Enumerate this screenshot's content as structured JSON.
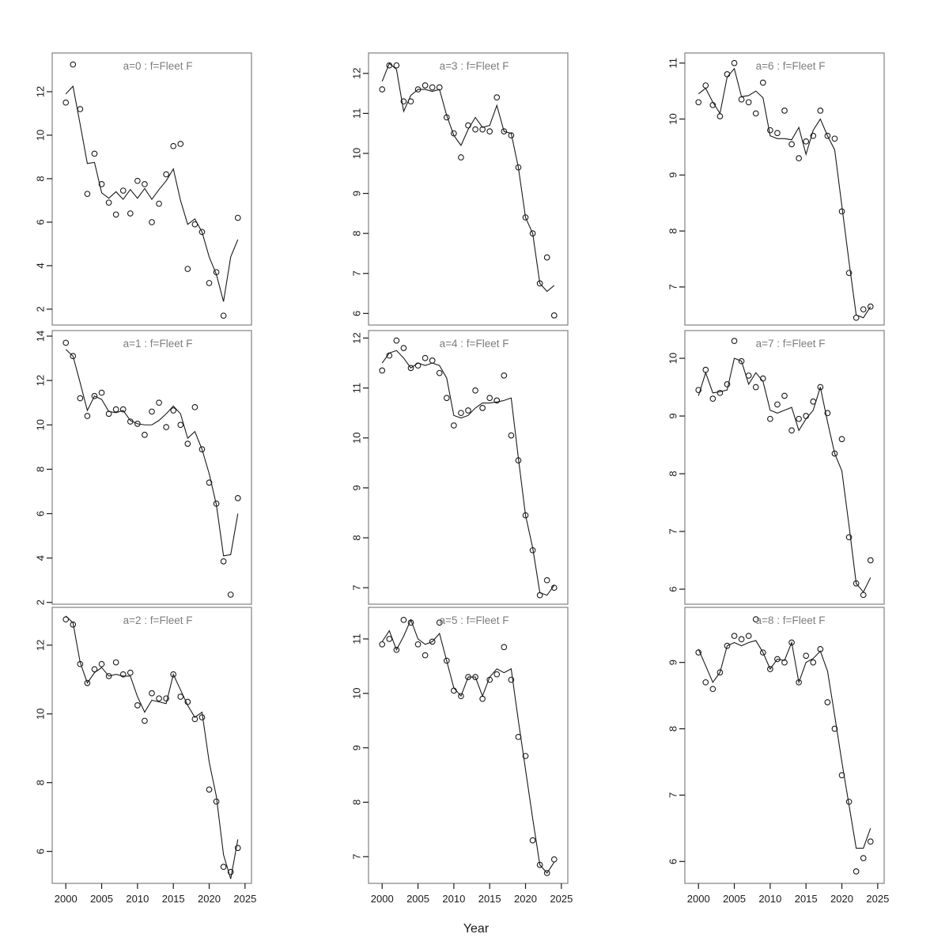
{
  "chart_data": {
    "type": "scatter",
    "title": "",
    "xlabel": "Year",
    "x": [
      2000,
      2001,
      2002,
      2003,
      2004,
      2005,
      2006,
      2007,
      2008,
      2009,
      2010,
      2011,
      2012,
      2013,
      2014,
      2015,
      2016,
      2017,
      2018,
      2019,
      2020,
      2021,
      2022,
      2023,
      2024
    ],
    "x_ticks": [
      2000,
      2005,
      2010,
      2015,
      2020,
      2025
    ],
    "xlim": [
      1998.1,
      2025.9
    ],
    "grid": false,
    "legend": "none",
    "marker": "open-circle",
    "colors": {
      "points": "#1a1a1a",
      "line": "#1a1a1a",
      "border": "#8a8a8a",
      "panel_label": "#7d7d7d",
      "tick_text": "#1a1a1a"
    },
    "layout_hint": {
      "rows": 3,
      "cols": 3,
      "order": "column-major",
      "x_axis_on_bottom_row_only": true
    },
    "panels": [
      {
        "label": "a=0  :  f=Fleet F",
        "ylim": [
          1.27,
          13.78
        ],
        "yticks": [
          2,
          4,
          6,
          8,
          10,
          12
        ],
        "series": [
          {
            "name": "observed",
            "values": [
              11.5,
              13.25,
              11.2,
              7.3,
              9.15,
              7.75,
              6.9,
              6.35,
              7.45,
              6.4,
              7.9,
              7.75,
              6.0,
              6.85,
              8.2,
              9.5,
              9.6,
              3.85,
              5.9,
              5.55,
              3.2,
              3.7,
              1.7,
              null,
              6.2
            ]
          },
          {
            "name": "fitted",
            "values": [
              11.9,
              12.25,
              10.5,
              8.7,
              8.75,
              7.35,
              7.1,
              7.4,
              7.05,
              7.5,
              7.1,
              7.55,
              7.05,
              7.5,
              7.9,
              8.45,
              7.0,
              5.9,
              6.15,
              5.55,
              4.4,
              3.6,
              2.35,
              4.4,
              5.2
            ]
          }
        ]
      },
      {
        "label": "a=1  :  f=Fleet F",
        "ylim": [
          1.92,
          14.25
        ],
        "yticks": [
          2,
          4,
          6,
          8,
          10,
          12,
          14
        ],
        "series": [
          {
            "name": "observed",
            "values": [
              13.7,
              13.1,
              11.2,
              10.4,
              11.3,
              11.45,
              10.5,
              10.7,
              10.7,
              10.15,
              10.05,
              9.55,
              10.6,
              11.0,
              9.9,
              10.65,
              10.0,
              9.15,
              10.8,
              8.9,
              7.4,
              6.45,
              3.85,
              2.35,
              6.7
            ]
          },
          {
            "name": "fitted",
            "values": [
              13.4,
              13.1,
              11.9,
              10.65,
              11.3,
              11.15,
              10.6,
              10.55,
              10.65,
              10.2,
              10.05,
              10.0,
              10.0,
              10.2,
              10.5,
              10.85,
              10.5,
              9.4,
              9.7,
              8.9,
              7.8,
              6.4,
              4.1,
              4.15,
              6.0
            ]
          }
        ]
      },
      {
        "label": "a=2  :  f=Fleet F",
        "ylim": [
          5.07,
          13.1
        ],
        "yticks": [
          6,
          8,
          10,
          12
        ],
        "series": [
          {
            "name": "observed",
            "values": [
              12.75,
              12.6,
              11.45,
              10.9,
              11.3,
              11.45,
              11.1,
              11.5,
              11.15,
              11.2,
              10.25,
              9.8,
              10.6,
              10.45,
              10.45,
              11.15,
              10.5,
              10.35,
              9.85,
              9.9,
              7.8,
              7.45,
              5.55,
              5.4,
              6.1
            ]
          },
          {
            "name": "fitted",
            "values": [
              12.85,
              12.65,
              11.5,
              10.9,
              11.2,
              11.35,
              11.1,
              11.15,
              11.1,
              11.1,
              10.5,
              10.05,
              10.4,
              10.35,
              10.3,
              11.15,
              10.7,
              10.25,
              9.9,
              10.05,
              8.6,
              7.6,
              5.9,
              5.2,
              6.35
            ]
          }
        ]
      },
      {
        "label": "a=3  :  f=Fleet F",
        "ylim": [
          5.71,
          12.51
        ],
        "yticks": [
          6,
          7,
          8,
          9,
          10,
          11,
          12
        ],
        "series": [
          {
            "name": "observed",
            "values": [
              11.6,
              12.2,
              12.2,
              11.3,
              11.3,
              11.6,
              11.7,
              11.65,
              11.65,
              10.9,
              10.5,
              9.9,
              10.7,
              10.6,
              10.6,
              10.55,
              11.4,
              10.55,
              10.45,
              9.65,
              8.4,
              8.0,
              6.75,
              7.4,
              5.95
            ]
          },
          {
            "name": "fitted",
            "values": [
              11.8,
              12.25,
              12.1,
              11.05,
              11.45,
              11.6,
              11.6,
              11.55,
              11.6,
              10.95,
              10.45,
              10.2,
              10.6,
              10.9,
              10.65,
              10.7,
              11.2,
              10.55,
              10.5,
              9.65,
              8.4,
              8.0,
              6.75,
              6.55,
              6.7
            ]
          }
        ]
      },
      {
        "label": "a=4  :  f=Fleet F",
        "ylim": [
          6.67,
          12.15
        ],
        "yticks": [
          7,
          8,
          9,
          10,
          11,
          12
        ],
        "series": [
          {
            "name": "observed",
            "values": [
              11.35,
              11.65,
              11.95,
              11.8,
              11.4,
              11.45,
              11.6,
              11.55,
              11.3,
              10.8,
              10.25,
              10.5,
              10.55,
              10.95,
              10.6,
              10.8,
              10.75,
              11.25,
              10.05,
              9.55,
              8.45,
              7.75,
              6.85,
              7.15,
              7.0
            ]
          },
          {
            "name": "fitted",
            "values": [
              11.5,
              11.7,
              11.75,
              11.6,
              11.4,
              11.5,
              11.45,
              11.5,
              11.45,
              11.2,
              10.45,
              10.4,
              10.45,
              10.6,
              10.7,
              10.7,
              10.72,
              10.75,
              10.8,
              9.6,
              8.45,
              7.8,
              6.9,
              6.85,
              7.05
            ]
          }
        ]
      },
      {
        "label": "a=5  :  f=Fleet F",
        "ylim": [
          6.51,
          11.58
        ],
        "yticks": [
          7,
          8,
          9,
          10,
          11
        ],
        "series": [
          {
            "name": "observed",
            "values": [
              10.9,
              11.0,
              10.8,
              11.35,
              11.3,
              10.9,
              10.7,
              10.95,
              11.3,
              10.6,
              10.05,
              9.95,
              10.3,
              10.3,
              9.9,
              10.25,
              10.35,
              10.85,
              10.25,
              9.2,
              8.85,
              7.3,
              6.85,
              6.7,
              6.95
            ]
          },
          {
            "name": "fitted",
            "values": [
              10.95,
              11.15,
              10.8,
              11.05,
              11.35,
              11.0,
              10.9,
              10.95,
              11.1,
              10.6,
              10.1,
              9.95,
              10.3,
              10.3,
              9.95,
              10.3,
              10.45,
              10.38,
              10.45,
              9.5,
              8.6,
              7.7,
              6.85,
              6.7,
              6.9
            ]
          }
        ]
      },
      {
        "label": "a=6  :  f=Fleet F",
        "ylim": [
          6.32,
          11.18
        ],
        "yticks": [
          7,
          8,
          9,
          10,
          11
        ],
        "series": [
          {
            "name": "observed",
            "values": [
              10.3,
              10.6,
              10.25,
              10.05,
              10.8,
              11.0,
              10.35,
              10.3,
              10.1,
              10.65,
              9.8,
              9.75,
              10.15,
              9.55,
              9.3,
              9.6,
              9.7,
              10.15,
              9.7,
              9.65,
              8.35,
              7.25,
              6.45,
              6.6,
              6.65
            ]
          },
          {
            "name": "fitted",
            "values": [
              10.45,
              10.55,
              10.3,
              10.1,
              10.75,
              10.9,
              10.4,
              10.42,
              10.5,
              10.38,
              9.7,
              9.65,
              9.65,
              9.63,
              9.85,
              9.37,
              9.8,
              10.0,
              9.7,
              9.45,
              8.45,
              7.45,
              6.5,
              6.45,
              6.65
            ]
          }
        ]
      },
      {
        "label": "a=7  :  f=Fleet F",
        "ylim": [
          5.74,
          10.48
        ],
        "yticks": [
          6,
          7,
          8,
          9,
          10
        ],
        "series": [
          {
            "name": "observed",
            "values": [
              9.45,
              9.8,
              9.3,
              9.4,
              9.55,
              10.3,
              9.95,
              9.7,
              9.5,
              9.65,
              8.95,
              9.2,
              9.35,
              8.75,
              8.95,
              9.0,
              9.25,
              9.5,
              9.05,
              8.35,
              8.6,
              6.9,
              6.1,
              5.9,
              6.5
            ]
          },
          {
            "name": "fitted",
            "values": [
              9.35,
              9.75,
              9.4,
              9.42,
              9.45,
              10.0,
              9.95,
              9.55,
              9.75,
              9.6,
              9.1,
              9.05,
              9.1,
              9.15,
              8.75,
              8.95,
              9.1,
              9.5,
              8.9,
              8.35,
              8.05,
              7.1,
              6.1,
              5.95,
              6.2
            ]
          }
        ]
      },
      {
        "label": "a=8  :  f=Fleet F",
        "ylim": [
          5.67,
          9.83
        ],
        "yticks": [
          6,
          7,
          8,
          9
        ],
        "series": [
          {
            "name": "observed",
            "values": [
              9.15,
              8.7,
              8.6,
              8.85,
              9.25,
              9.4,
              9.35,
              9.4,
              9.65,
              9.15,
              8.9,
              9.05,
              9.0,
              9.3,
              8.7,
              9.1,
              9.0,
              9.2,
              8.4,
              8.0,
              7.3,
              6.9,
              5.85,
              6.05,
              6.3
            ]
          },
          {
            "name": "fitted",
            "values": [
              9.2,
              8.95,
              8.7,
              8.85,
              9.25,
              9.3,
              9.25,
              9.3,
              9.33,
              9.15,
              8.9,
              9.05,
              9.03,
              9.3,
              8.7,
              9.0,
              9.06,
              9.17,
              8.87,
              8.2,
              7.5,
              6.85,
              6.2,
              6.2,
              6.5
            ]
          }
        ]
      }
    ]
  }
}
